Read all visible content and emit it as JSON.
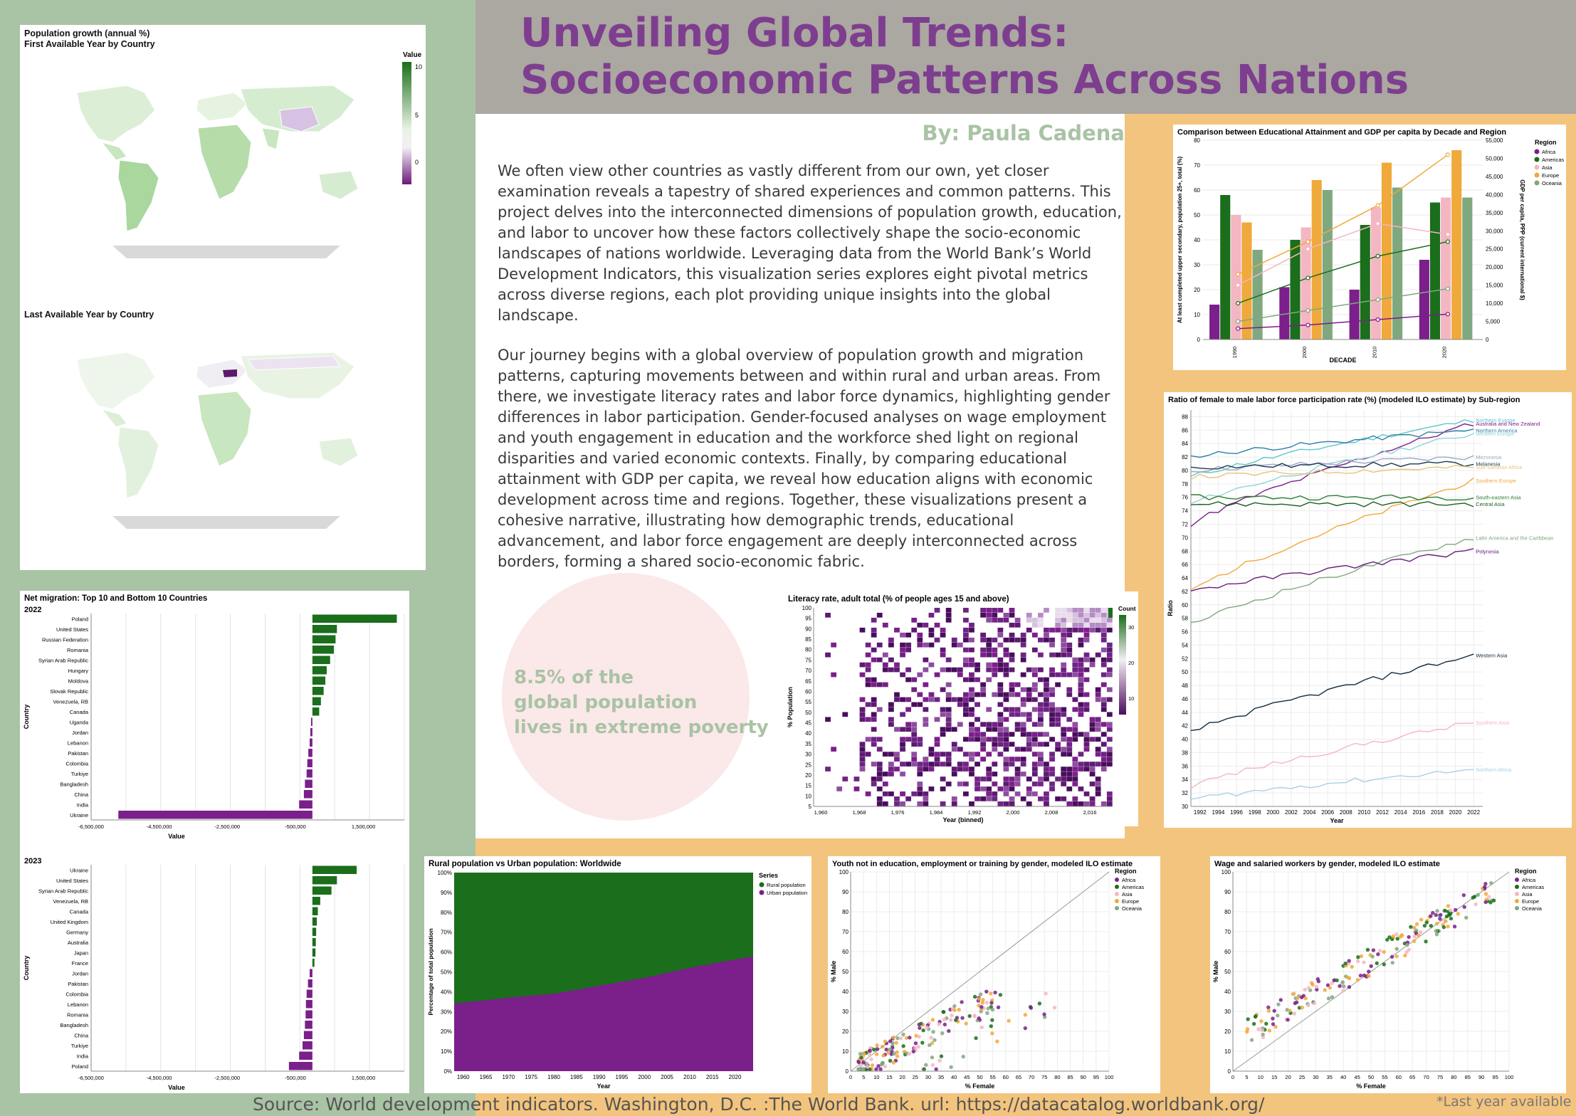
{
  "header": {
    "title_line1": "Unveiling Global Trends:",
    "title_line2": "Socioeconomic Patterns Across Nations",
    "author": "By: Paula Cadena"
  },
  "intro": {
    "paragraph1": "We often view other countries as vastly different from our own, yet closer examination reveals a tapestry of shared experiences and common patterns. This project delves into the interconnected dimensions of population growth, education, and labor to uncover how these factors collectively shape the socio-economic landscapes of nations worldwide. Leveraging data from the World Bank’s World Development Indicators, this visualization series explores eight pivotal metrics across diverse regions, each plot providing unique insights into the global landscape.",
    "paragraph2": "Our journey begins with a global overview of population growth and migration patterns, capturing movements between and within rural and urban areas. From there, we investigate literacy rates and labor force dynamics, highlighting gender differences in labor participation. Gender-focused analyses on wage employment and youth engagement in education and the workforce shed light on regional disparities and varied economic contexts. Finally, by comparing educational attainment with GDP per capita, we reveal how education aligns with economic development across time and regions. Together, these visualizations present a cohesive narrative, illustrating how demographic trends, educational advancement, and labor force engagement are deeply interconnected across borders, forming a shared socio-economic fabric."
  },
  "poverty": {
    "line1": "8.5% of the",
    "line2": "global population",
    "line3": "lives in extreme poverty"
  },
  "footer": {
    "source": "Source: World development indicators. Washington, D.C. :The World Bank. url: https://datacatalog.worldbank.org/",
    "last_year": "*Last year available"
  },
  "colors": {
    "green": "#1b6e1b",
    "purple": "#7b1f8a",
    "title_purple": "#7e3e8f",
    "sage": "#a9c3a5",
    "orange": "#f3c47d",
    "gray_band": "#aba7a1"
  },
  "chart_data": [
    {
      "id": "population-map",
      "type": "heatmap",
      "title": "Population growth (annual %)",
      "subtitle1": "First Available Year by Country",
      "subtitle2": "Last Available Year by Country",
      "legend_title": "Value",
      "legend_ticks": [
        "10",
        "5",
        "0"
      ]
    },
    {
      "id": "net-migration",
      "type": "bar",
      "title": "Net migration: Top 10 and Bottom 10 Countries",
      "xlabel": "Value",
      "ylabel": "Country",
      "x_ticks": [
        "-6,500,000",
        "-4,500,000",
        "-2,500,000",
        "-500,000",
        "1,500,000"
      ],
      "xlim": [
        -6500000,
        2700000
      ],
      "panels": [
        {
          "year": "2022",
          "categories": [
            "Poland",
            "United States",
            "Russian Federation",
            "Romania",
            "Syrian Arab Republic",
            "Hungary",
            "Moldova",
            "Slovak Republic",
            "Venezuela, RB",
            "Canada",
            "Uganda",
            "Jordan",
            "Lebanon",
            "Pakistan",
            "Colombia",
            "Turkiye",
            "Bangladesh",
            "China",
            "India",
            "Ukraine"
          ],
          "values": [
            2480000,
            720000,
            680000,
            630000,
            520000,
            420000,
            380000,
            330000,
            250000,
            200000,
            -40000,
            -60000,
            -80000,
            -120000,
            -150000,
            -170000,
            -220000,
            -250000,
            -390000,
            -5700000
          ]
        },
        {
          "year": "2023",
          "categories": [
            "Ukraine",
            "United States",
            "Syrian Arab Republic",
            "Venezuela, RB",
            "Canada",
            "United Kingdom",
            "Germany",
            "Australia",
            "Japan",
            "France",
            "Jordan",
            "Pakistan",
            "Colombia",
            "Lebanon",
            "Romania",
            "Bangladesh",
            "China",
            "Turkiye",
            "India",
            "Poland"
          ],
          "values": [
            1300000,
            720000,
            560000,
            230000,
            160000,
            130000,
            110000,
            100000,
            90000,
            60000,
            -80000,
            -130000,
            -170000,
            -190000,
            -200000,
            -220000,
            -250000,
            -290000,
            -390000,
            -690000
          ]
        }
      ]
    },
    {
      "id": "rural-urban",
      "type": "area",
      "title": "Rural population vs Urban population: Worldwide",
      "xlabel": "Year",
      "ylabel": "Percentage of total population",
      "x_ticks": [
        "1960",
        "1965",
        "1970",
        "1975",
        "1980",
        "1985",
        "1990",
        "1995",
        "2000",
        "2005",
        "2010",
        "2015",
        "2020"
      ],
      "y_ticks": [
        "0%",
        "10%",
        "20%",
        "30%",
        "40%",
        "50%",
        "60%",
        "70%",
        "80%",
        "90%",
        "100%"
      ],
      "legend_title": "Series",
      "series": [
        {
          "name": "Rural population",
          "color": "#1b6e1b"
        },
        {
          "name": "Urban population",
          "color": "#7b1f8a"
        }
      ],
      "x": [
        1960,
        1970,
        1980,
        1990,
        2000,
        2010,
        2023
      ],
      "urban_share": [
        34,
        37,
        39,
        43,
        47,
        52,
        57.5
      ]
    },
    {
      "id": "literacy",
      "type": "heatmap",
      "title": "Literacy rate, adult total (% of people ages 15 and above)",
      "xlabel": "Year (binned)",
      "ylabel": "% Population",
      "x_ticks": [
        "1,960",
        "1,968",
        "1,976",
        "1,984",
        "1,992",
        "2,000",
        "2,008",
        "2,016"
      ],
      "y_ticks": [
        "5",
        "10",
        "15",
        "20",
        "25",
        "30",
        "35",
        "40",
        "45",
        "50",
        "55",
        "60",
        "65",
        "70",
        "75",
        "80",
        "85",
        "90",
        "95",
        "100"
      ],
      "legend_title": "Count",
      "legend_ticks": [
        "30",
        "20",
        "10"
      ]
    },
    {
      "id": "edu-gdp",
      "type": "bar",
      "title": "Comparison between Educational Attainment and GDP per capita by Decade and Region",
      "xlabel": "DECADE",
      "ylabel": "At least completed upper secondary, population 25+, total (%)",
      "y2label": "GDP per capita, PPP (current international $)",
      "categories": [
        "1990",
        "2000",
        "2010",
        "2020"
      ],
      "y_ticks": [
        "0",
        "10",
        "20",
        "30",
        "40",
        "50",
        "60",
        "70",
        "80"
      ],
      "y2_ticks": [
        "0",
        "5,000",
        "10,000",
        "15,000",
        "20,000",
        "25,000",
        "30,000",
        "35,000",
        "40,000",
        "45,000",
        "50,000",
        "55,000"
      ],
      "ylim": [
        0,
        80
      ],
      "y2lim": [
        0,
        55000
      ],
      "legend_title": "Region",
      "series": [
        {
          "name": "Africa",
          "color": "#7b1f8a",
          "values": [
            14,
            21,
            20,
            32
          ],
          "gdp": [
            3000,
            4000,
            5500,
            7000
          ]
        },
        {
          "name": "Americas",
          "color": "#1b6e1b",
          "values": [
            58,
            40,
            46,
            55
          ],
          "gdp": [
            10000,
            17000,
            23000,
            27000
          ]
        },
        {
          "name": "Asia",
          "color": "#f4b6c2",
          "values": [
            50,
            45,
            53,
            57
          ],
          "gdp": [
            15000,
            25000,
            32000,
            29000
          ]
        },
        {
          "name": "Europe",
          "color": "#f0a93b",
          "values": [
            47,
            64,
            71,
            76
          ],
          "gdp": [
            18000,
            27000,
            37000,
            51000
          ]
        },
        {
          "name": "Oceania",
          "color": "#7fa87f",
          "values": [
            36,
            60,
            61,
            57
          ],
          "gdp": [
            5000,
            8000,
            11000,
            14000
          ]
        }
      ]
    },
    {
      "id": "labor-ratio",
      "type": "line",
      "title": "Ratio of female to male labor force participation rate (%) (modeled ILO estimate) by Sub-region",
      "xlabel": "Year",
      "ylabel": "Ratio",
      "x_ticks": [
        "1992",
        "1994",
        "1996",
        "1998",
        "2000",
        "2002",
        "2004",
        "2006",
        "2008",
        "2010",
        "2012",
        "2014",
        "2016",
        "2018",
        "2020",
        "2022"
      ],
      "y_ticks": [
        "30",
        "32",
        "34",
        "36",
        "38",
        "40",
        "42",
        "44",
        "46",
        "48",
        "50",
        "52",
        "54",
        "56",
        "58",
        "60",
        "62",
        "64",
        "66",
        "68",
        "70",
        "72",
        "74",
        "76",
        "78",
        "80",
        "82",
        "84",
        "86",
        "88"
      ],
      "ylim": [
        30,
        89
      ],
      "xlim": [
        1991,
        2023
      ],
      "series": [
        {
          "name": "Northern Europe",
          "color": "#5fc7c7",
          "start": 79,
          "end": 87.5
        },
        {
          "name": "Australia and New Zealand",
          "color": "#7b1f8a",
          "start": 72,
          "end": 87
        },
        {
          "name": "Northern America",
          "color": "#2d7fa8",
          "start": 82,
          "end": 86
        },
        {
          "name": "Western Europe",
          "color": "#8fd3d3",
          "start": 75,
          "end": 85.5
        },
        {
          "name": "Micronesia",
          "color": "#9aa8c8",
          "start": 80,
          "end": 82
        },
        {
          "name": "Melanesia",
          "color": "#1d3a4f",
          "start": 80.5,
          "end": 81
        },
        {
          "name": "Sub-Saharan Africa",
          "color": "#e9c47a",
          "start": 79,
          "end": 80.5
        },
        {
          "name": "Southern Europe",
          "color": "#f0a93b",
          "start": 62,
          "end": 78.5
        },
        {
          "name": "South-eastern Asia",
          "color": "#2e7d32",
          "start": 76,
          "end": 76
        },
        {
          "name": "Central Asia",
          "color": "#1b5e20",
          "start": 75,
          "end": 75
        },
        {
          "name": "Latin America and the Caribbean",
          "color": "#7fa87f",
          "start": 57,
          "end": 70
        },
        {
          "name": "Polynesia",
          "color": "#6a1b7a",
          "start": 62,
          "end": 68
        },
        {
          "name": "Western Asia",
          "color": "#0f2a3f",
          "start": 41,
          "end": 52.5
        },
        {
          "name": "Southern Asia",
          "color": "#f4b6c2",
          "start": 33,
          "end": 42.5
        },
        {
          "name": "Northern Africa",
          "color": "#a8d1e8",
          "start": 31,
          "end": 35.5
        }
      ]
    },
    {
      "id": "neet",
      "type": "scatter",
      "title": "Youth not in education, employment or training by gender, modeled ILO estimate",
      "xlabel": "% Female",
      "ylabel": "% Male",
      "x_ticks": [
        "0",
        "5",
        "10",
        "15",
        "20",
        "25",
        "30",
        "35",
        "40",
        "45",
        "50",
        "55",
        "60",
        "65",
        "70",
        "75",
        "80",
        "85",
        "90",
        "95",
        "100"
      ],
      "y_ticks": [
        "0",
        "10",
        "20",
        "30",
        "40",
        "50",
        "60",
        "70",
        "80",
        "90",
        "100"
      ],
      "xlim": [
        0,
        100
      ],
      "ylim": [
        0,
        100
      ],
      "legend_title": "Region",
      "legend": [
        "Africa",
        "Americas",
        "Asia",
        "Europe",
        "Oceania"
      ]
    },
    {
      "id": "wage",
      "type": "scatter",
      "title": "Wage and salaried workers by gender, modeled ILO estimate",
      "xlabel": "% Female",
      "ylabel": "% Male",
      "x_ticks": [
        "0",
        "5",
        "10",
        "15",
        "20",
        "25",
        "30",
        "35",
        "40",
        "45",
        "50",
        "55",
        "60",
        "65",
        "70",
        "75",
        "80",
        "85",
        "90",
        "95",
        "100"
      ],
      "y_ticks": [
        "0",
        "10",
        "20",
        "30",
        "40",
        "50",
        "60",
        "70",
        "80",
        "90",
        "100"
      ],
      "xlim": [
        0,
        100
      ],
      "ylim": [
        0,
        100
      ],
      "legend_title": "Region",
      "legend": [
        "Africa",
        "Americas",
        "Asia",
        "Europe",
        "Oceania"
      ]
    }
  ]
}
